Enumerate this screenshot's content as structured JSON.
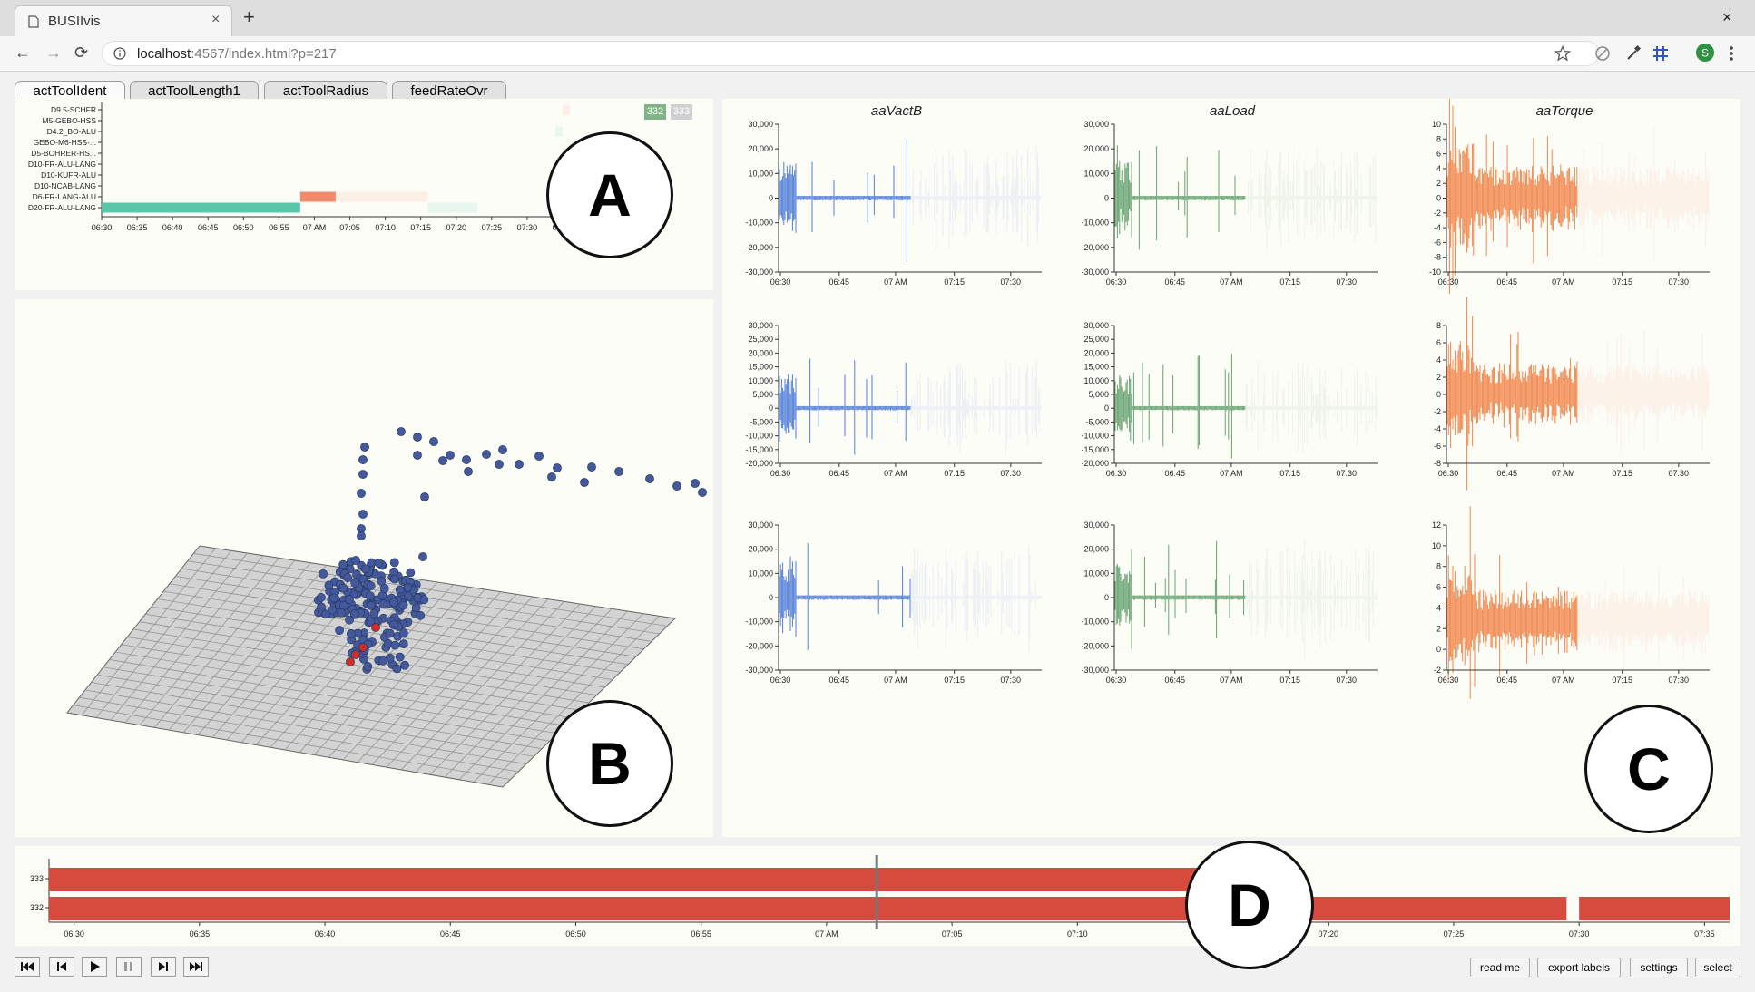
{
  "browser": {
    "tab_title": "BUSIIvis",
    "tab_close": "×",
    "new_tab": "+",
    "window_close": "×",
    "url_host": "localhost",
    "url_rest": ":4567/index.html?p=217",
    "back": "←",
    "forward": "→",
    "reload": "⟳"
  },
  "app_tabs": [
    {
      "label": "actToolIdent",
      "active": true
    },
    {
      "label": "actToolLength1",
      "active": false
    },
    {
      "label": "actToolRadius",
      "active": false
    },
    {
      "label": "feedRateOvr",
      "active": false
    }
  ],
  "panel_a": {
    "badges": [
      "332",
      "333"
    ],
    "circle_label": "A",
    "chart_data": {
      "type": "bar",
      "categories": [
        "D9.5-SCHFR",
        "M5-GEBO-HSS",
        "D4.2_BO-ALU",
        "GEBO-M6-HSS-...",
        "D5-BOHRER-HS...",
        "D10-FR-ALU-LANG",
        "D10-KUFR-ALU",
        "D10-NCAB-LANG",
        "D6-FR-LANG-ALU",
        "D20-FR-ALU-LANG"
      ],
      "x_ticks": [
        "06:30",
        "06:35",
        "06:40",
        "06:45",
        "06:50",
        "06:55",
        "07 AM",
        "07:05",
        "07:10",
        "07:15",
        "07:20",
        "07:25",
        "07:30",
        "07:35"
      ],
      "xlim": [
        0,
        65
      ],
      "segments": [
        {
          "category": "D20-FR-ALU-LANG",
          "start": 0,
          "end": 28,
          "color": "#5cc6a8",
          "opacity": 1
        },
        {
          "category": "D6-FR-LANG-ALU",
          "start": 28,
          "end": 33,
          "color": "#f28a6e",
          "opacity": 1
        },
        {
          "category": "D6-FR-LANG-ALU",
          "start": 33,
          "end": 46,
          "color": "#f28a6e",
          "opacity": 0.12
        },
        {
          "category": "D20-FR-ALU-LANG",
          "start": 46,
          "end": 53,
          "color": "#5cc6a8",
          "opacity": 0.12
        },
        {
          "category": "D4.2_BO-ALU",
          "start": 64,
          "end": 65,
          "color": "#5cc6a8",
          "opacity": 0.12
        },
        {
          "category": "D9.5-SCHFR",
          "start": 65,
          "end": 66,
          "color": "#f28a6e",
          "opacity": 0.12
        }
      ]
    }
  },
  "panel_b": {
    "circle_label": "B"
  },
  "panel_c": {
    "circle_label": "C",
    "columns": [
      "aaVactB",
      "aaLoad",
      "aaTorque"
    ],
    "chart_data": [
      {
        "type": "line",
        "column": "aaVactB",
        "row": 1,
        "color": "#4a78d6",
        "ylim": [
          -30000,
          30000
        ],
        "y_ticks": [
          "-30,000",
          "-20,000",
          "-10,000",
          "0",
          "10,000",
          "20,000",
          "30,000"
        ],
        "x_ticks": [
          "06:30",
          "06:45",
          "07 AM",
          "07:15",
          "07:30"
        ]
      },
      {
        "type": "line",
        "column": "aaLoad",
        "row": 1,
        "color": "#5e9e68",
        "ylim": [
          -30000,
          30000
        ],
        "y_ticks": [
          "-30,000",
          "-20,000",
          "-10,000",
          "0",
          "10,000",
          "20,000",
          "30,000"
        ],
        "x_ticks": [
          "06:30",
          "06:45",
          "07 AM",
          "07:15",
          "07:30"
        ]
      },
      {
        "type": "line",
        "column": "aaTorque",
        "row": 1,
        "color": "#f08040",
        "ylim": [
          -10,
          10
        ],
        "y_ticks": [
          "-10",
          "-8",
          "-6",
          "-4",
          "-2",
          "0",
          "2",
          "4",
          "6",
          "8",
          "10"
        ],
        "x_ticks": [
          "06:30",
          "06:45",
          "07 AM",
          "07:15",
          "07:30"
        ]
      },
      {
        "type": "line",
        "column": "aaVactB",
        "row": 2,
        "color": "#4a78d6",
        "ylim": [
          -20000,
          30000
        ],
        "y_ticks": [
          "-20,000",
          "-15,000",
          "-10,000",
          "-5,000",
          "0",
          "5,000",
          "10,000",
          "15,000",
          "20,000",
          "25,000",
          "30,000"
        ],
        "x_ticks": [
          "06:30",
          "06:45",
          "07 AM",
          "07:15",
          "07:30"
        ]
      },
      {
        "type": "line",
        "column": "aaLoad",
        "row": 2,
        "color": "#5e9e68",
        "ylim": [
          -20000,
          30000
        ],
        "y_ticks": [
          "-20,000",
          "-15,000",
          "-10,000",
          "-5,000",
          "0",
          "5,000",
          "10,000",
          "15,000",
          "20,000",
          "25,000",
          "30,000"
        ],
        "x_ticks": [
          "06:30",
          "06:45",
          "07 AM",
          "07:15",
          "07:30"
        ]
      },
      {
        "type": "line",
        "column": "aaTorque",
        "row": 2,
        "color": "#f08040",
        "ylim": [
          -8,
          8
        ],
        "y_ticks": [
          "-8",
          "-6",
          "-4",
          "-2",
          "0",
          "2",
          "4",
          "6",
          "8"
        ],
        "x_ticks": [
          "06:30",
          "06:45",
          "07 AM",
          "07:15",
          "07:30"
        ]
      },
      {
        "type": "line",
        "column": "aaVactB",
        "row": 3,
        "color": "#4a78d6",
        "ylim": [
          -30000,
          30000
        ],
        "y_ticks": [
          "-30,000",
          "-20,000",
          "-10,000",
          "0",
          "10,000",
          "20,000",
          "30,000"
        ],
        "x_ticks": [
          "06:30",
          "06:45",
          "07 AM",
          "07:15",
          "07:30"
        ]
      },
      {
        "type": "line",
        "column": "aaLoad",
        "row": 3,
        "color": "#5e9e68",
        "ylim": [
          -30000,
          30000
        ],
        "y_ticks": [
          "-30,000",
          "-20,000",
          "-10,000",
          "0",
          "10,000",
          "20,000",
          "30,000"
        ],
        "x_ticks": [
          "06:30",
          "06:45",
          "07 AM",
          "07:15",
          "07:30"
        ]
      },
      {
        "type": "line",
        "column": "aaTorque",
        "row": 3,
        "color": "#f08040",
        "ylim": [
          -2,
          13
        ],
        "y_ticks": [
          "-2",
          "0",
          "2",
          "4",
          "6",
          "8",
          "10",
          "12"
        ],
        "x_ticks": [
          "06:30",
          "06:45",
          "07 AM",
          "07:15",
          "07:30"
        ]
      }
    ]
  },
  "panel_d": {
    "circle_label": "D",
    "chart_data": {
      "type": "bar",
      "categories": [
        "333",
        "332"
      ],
      "x_ticks": [
        "06:30",
        "06:35",
        "06:40",
        "06:45",
        "06:50",
        "06:55",
        "07 AM",
        "07:05",
        "07:10",
        "07:15",
        "07:20",
        "07:25",
        "07:30",
        "07:35"
      ],
      "xlim": [
        -1,
        66
      ],
      "color": "#d74b3f",
      "segments": [
        {
          "category": "333",
          "start": -1,
          "end": 45
        },
        {
          "category": "332",
          "start": -1,
          "end": 47
        },
        {
          "category": "332",
          "start": 49,
          "end": 59.5
        },
        {
          "category": "332",
          "start": 60,
          "end": 66
        }
      ],
      "cursor": 32
    }
  },
  "controls": {
    "buttons": [
      "read me",
      "export labels",
      "settings",
      "select"
    ],
    "playback": [
      "first",
      "prev",
      "play",
      "pause",
      "next",
      "last"
    ]
  }
}
